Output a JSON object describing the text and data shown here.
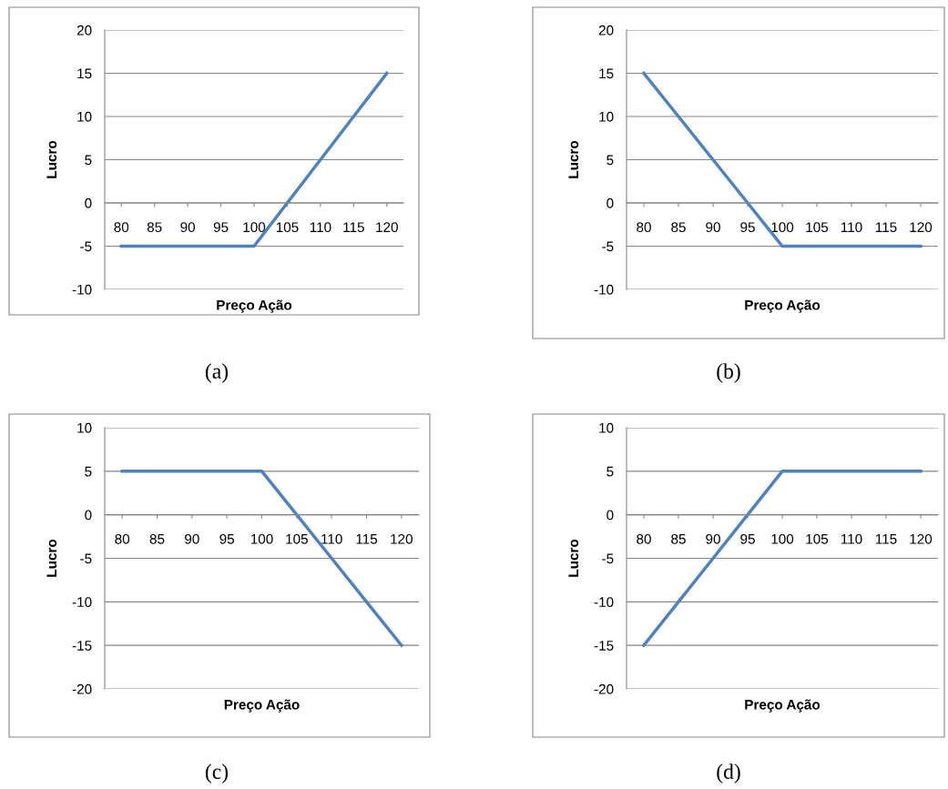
{
  "chart_data": [
    {
      "type": "line",
      "categories": [
        "80",
        "85",
        "90",
        "95",
        "100",
        "105",
        "110",
        "115",
        "120"
      ],
      "series": [
        {
          "color": "#4f81bd",
          "values": [
            -5,
            -5,
            -5,
            -5,
            -5,
            0,
            5,
            10,
            15
          ]
        }
      ],
      "ylim": [
        -10,
        20
      ],
      "yticks": [
        -10,
        -5,
        0,
        5,
        10,
        15,
        20
      ],
      "xlabel": "Preço Ação",
      "ylabel": "Lucro",
      "grid": "y",
      "marker": "none",
      "annotations": [
        "(a)"
      ]
    },
    {
      "type": "line",
      "categories": [
        "80",
        "85",
        "90",
        "95",
        "100",
        "105",
        "110",
        "115",
        "120"
      ],
      "series": [
        {
          "color": "#4f81bd",
          "values": [
            15,
            10,
            5,
            0,
            -5,
            -5,
            -5,
            -5,
            -5
          ]
        }
      ],
      "ylim": [
        -10,
        20
      ],
      "yticks": [
        -10,
        -5,
        0,
        5,
        10,
        15,
        20
      ],
      "xlabel": "Preço Ação",
      "ylabel": "Lucro",
      "grid": "y",
      "marker": "none",
      "annotations": [
        "(b)"
      ]
    },
    {
      "type": "line",
      "categories": [
        "80",
        "85",
        "90",
        "95",
        "100",
        "105",
        "110",
        "115",
        "120"
      ],
      "series": [
        {
          "color": "#4f81bd",
          "values": [
            5,
            5,
            5,
            5,
            5,
            0,
            -5,
            -10,
            -15
          ]
        }
      ],
      "ylim": [
        -20,
        10
      ],
      "yticks": [
        -20,
        -15,
        -10,
        -5,
        0,
        5,
        10
      ],
      "xlabel": "Preço Ação",
      "ylabel": "Lucro",
      "grid": "y",
      "marker": "none",
      "annotations": [
        "(c)"
      ]
    },
    {
      "type": "line",
      "categories": [
        "80",
        "85",
        "90",
        "95",
        "100",
        "105",
        "110",
        "115",
        "120"
      ],
      "series": [
        {
          "color": "#4f81bd",
          "values": [
            -15,
            -10,
            -5,
            0,
            5,
            5,
            5,
            5,
            5
          ]
        }
      ],
      "ylim": [
        -20,
        10
      ],
      "yticks": [
        -20,
        -15,
        -10,
        -5,
        0,
        5,
        10
      ],
      "xlabel": "Preço Ação",
      "ylabel": "Lucro",
      "grid": "y",
      "marker": "none",
      "annotations": [
        "(d)"
      ]
    }
  ]
}
